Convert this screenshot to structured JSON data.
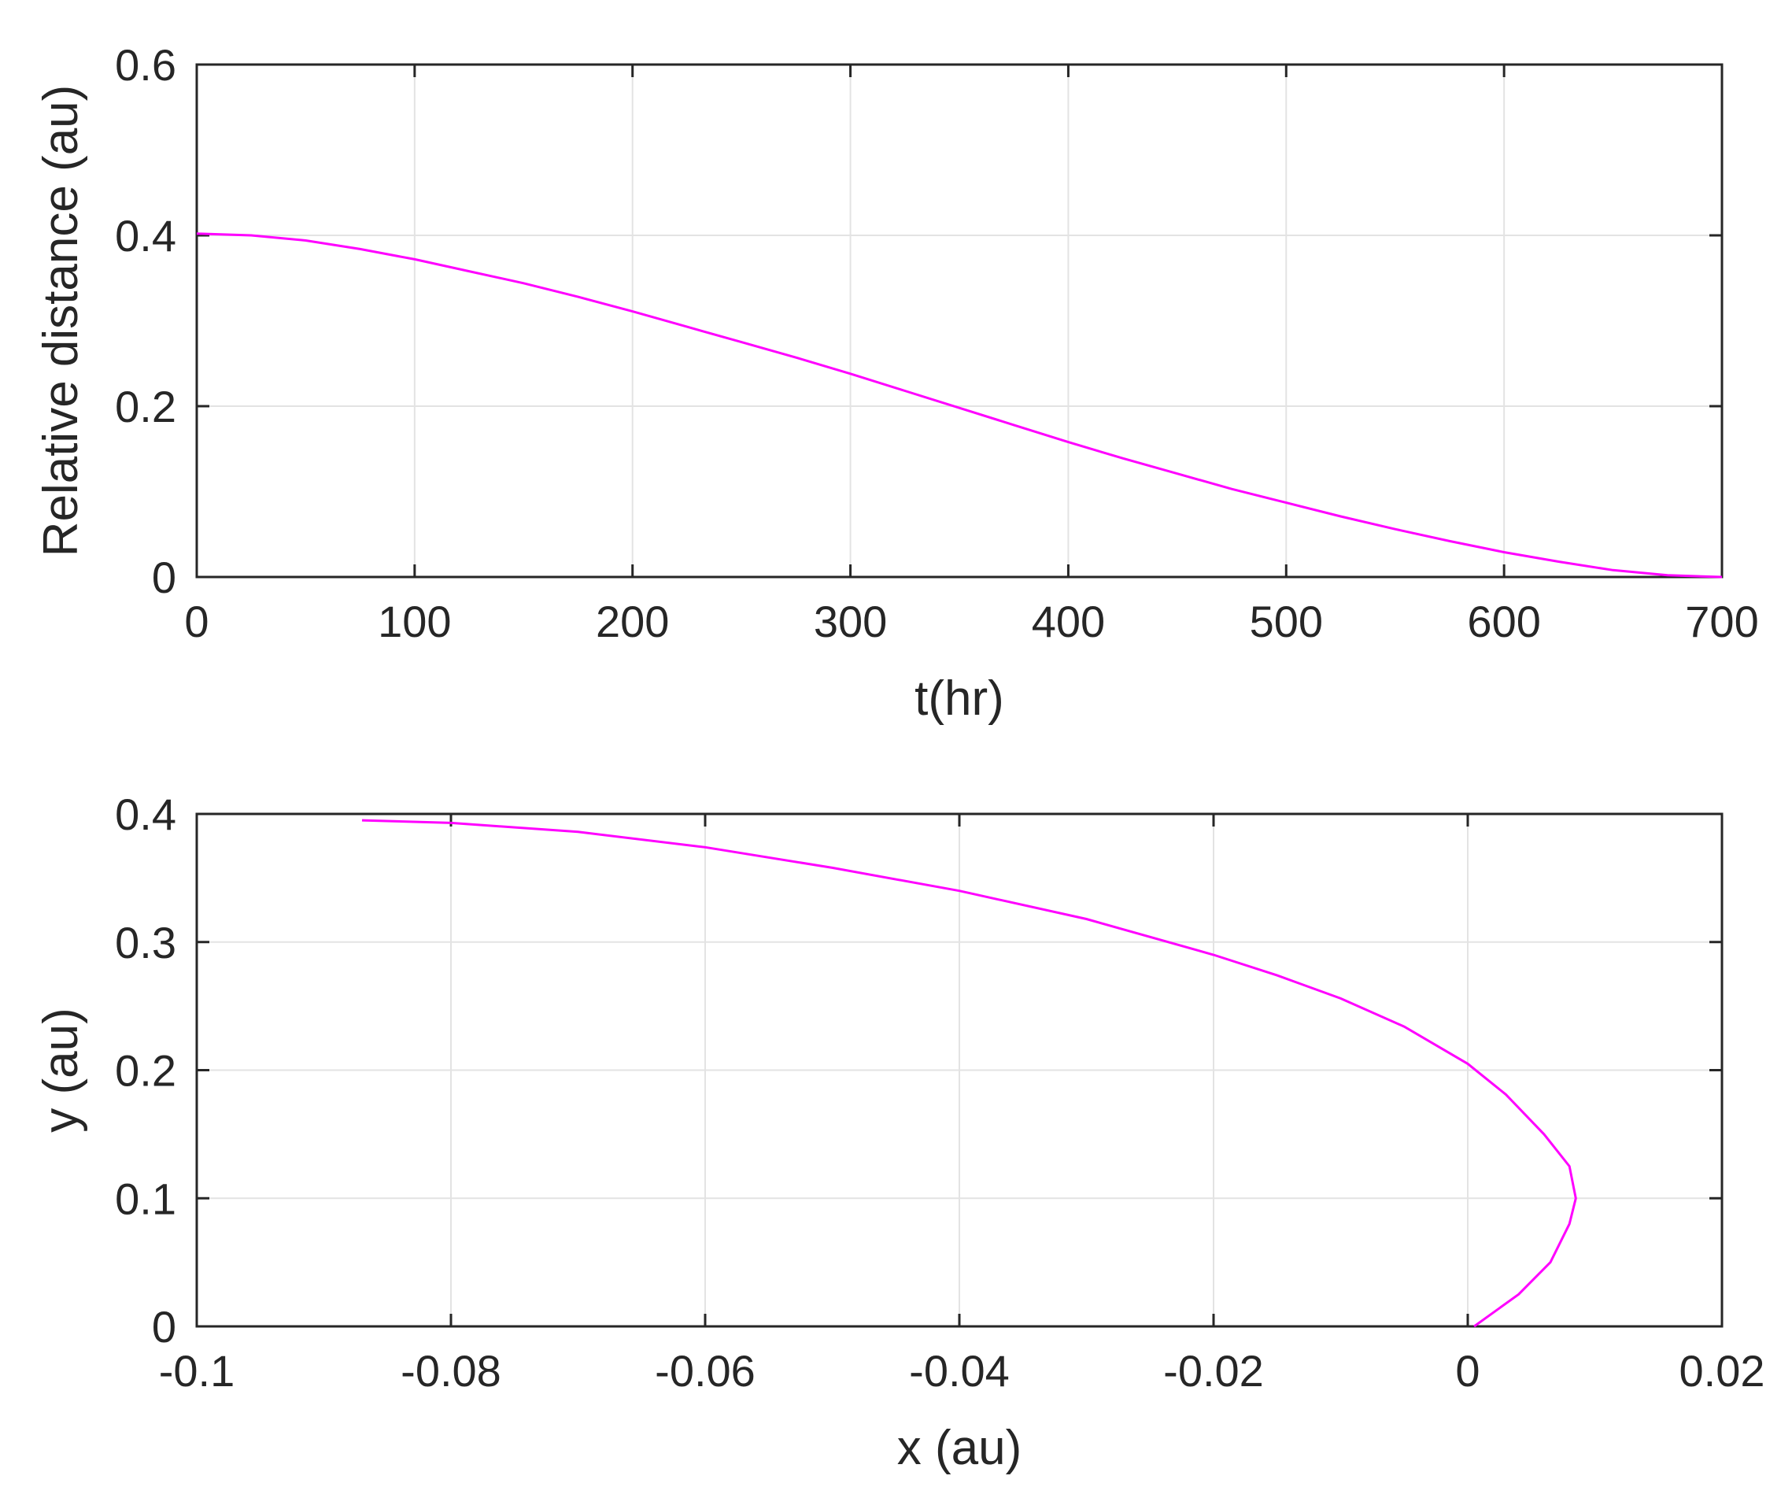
{
  "chart_data": [
    {
      "type": "line",
      "xlabel": "t(hr)",
      "ylabel": "Relative distance (au)",
      "xlim": [
        0,
        700
      ],
      "ylim": [
        0,
        0.6
      ],
      "xticks": [
        0,
        100,
        200,
        300,
        400,
        500,
        600,
        700
      ],
      "yticks": [
        0,
        0.2,
        0.4,
        0.6
      ],
      "xtick_labels": [
        "0",
        "100",
        "200",
        "300",
        "400",
        "500",
        "600",
        "700"
      ],
      "ytick_labels": [
        "0",
        "0.2",
        "0.4",
        "0.6"
      ],
      "grid": true,
      "color": "#ff00ff",
      "series": [
        {
          "x": [
            0,
            25,
            50,
            75,
            100,
            125,
            150,
            175,
            200,
            225,
            250,
            275,
            300,
            325,
            350,
            375,
            400,
            425,
            450,
            475,
            500,
            525,
            550,
            575,
            600,
            625,
            650,
            675,
            700
          ],
          "y": [
            0.402,
            0.4,
            0.394,
            0.384,
            0.372,
            0.358,
            0.344,
            0.328,
            0.311,
            0.293,
            0.275,
            0.257,
            0.238,
            0.218,
            0.198,
            0.178,
            0.158,
            0.139,
            0.121,
            0.103,
            0.087,
            0.071,
            0.056,
            0.042,
            0.029,
            0.018,
            0.008,
            0.002,
            0.0
          ]
        }
      ]
    },
    {
      "type": "line",
      "xlabel": "x (au)",
      "ylabel": "y (au)",
      "xlim": [
        -0.1,
        0.02
      ],
      "ylim": [
        0,
        0.4
      ],
      "xticks": [
        -0.1,
        -0.08,
        -0.06,
        -0.04,
        -0.02,
        0,
        0.02
      ],
      "yticks": [
        0,
        0.1,
        0.2,
        0.3,
        0.4
      ],
      "xtick_labels": [
        "-0.1",
        "-0.08",
        "-0.06",
        "-0.04",
        "-0.02",
        "0",
        "0.02"
      ],
      "ytick_labels": [
        "0",
        "0.1",
        "0.2",
        "0.3",
        "0.4"
      ],
      "grid": true,
      "color": "#ff00ff",
      "series": [
        {
          "x": [
            -0.087,
            -0.08,
            -0.07,
            -0.06,
            -0.05,
            -0.04,
            -0.03,
            -0.02,
            -0.015,
            -0.01,
            -0.005,
            0.0,
            0.003,
            0.006,
            0.008,
            0.0085,
            0.008,
            0.0065,
            0.004,
            0.0005
          ],
          "y": [
            0.395,
            0.393,
            0.386,
            0.374,
            0.358,
            0.34,
            0.318,
            0.29,
            0.274,
            0.256,
            0.234,
            0.205,
            0.181,
            0.15,
            0.125,
            0.1,
            0.08,
            0.05,
            0.025,
            0.0
          ]
        }
      ]
    }
  ]
}
